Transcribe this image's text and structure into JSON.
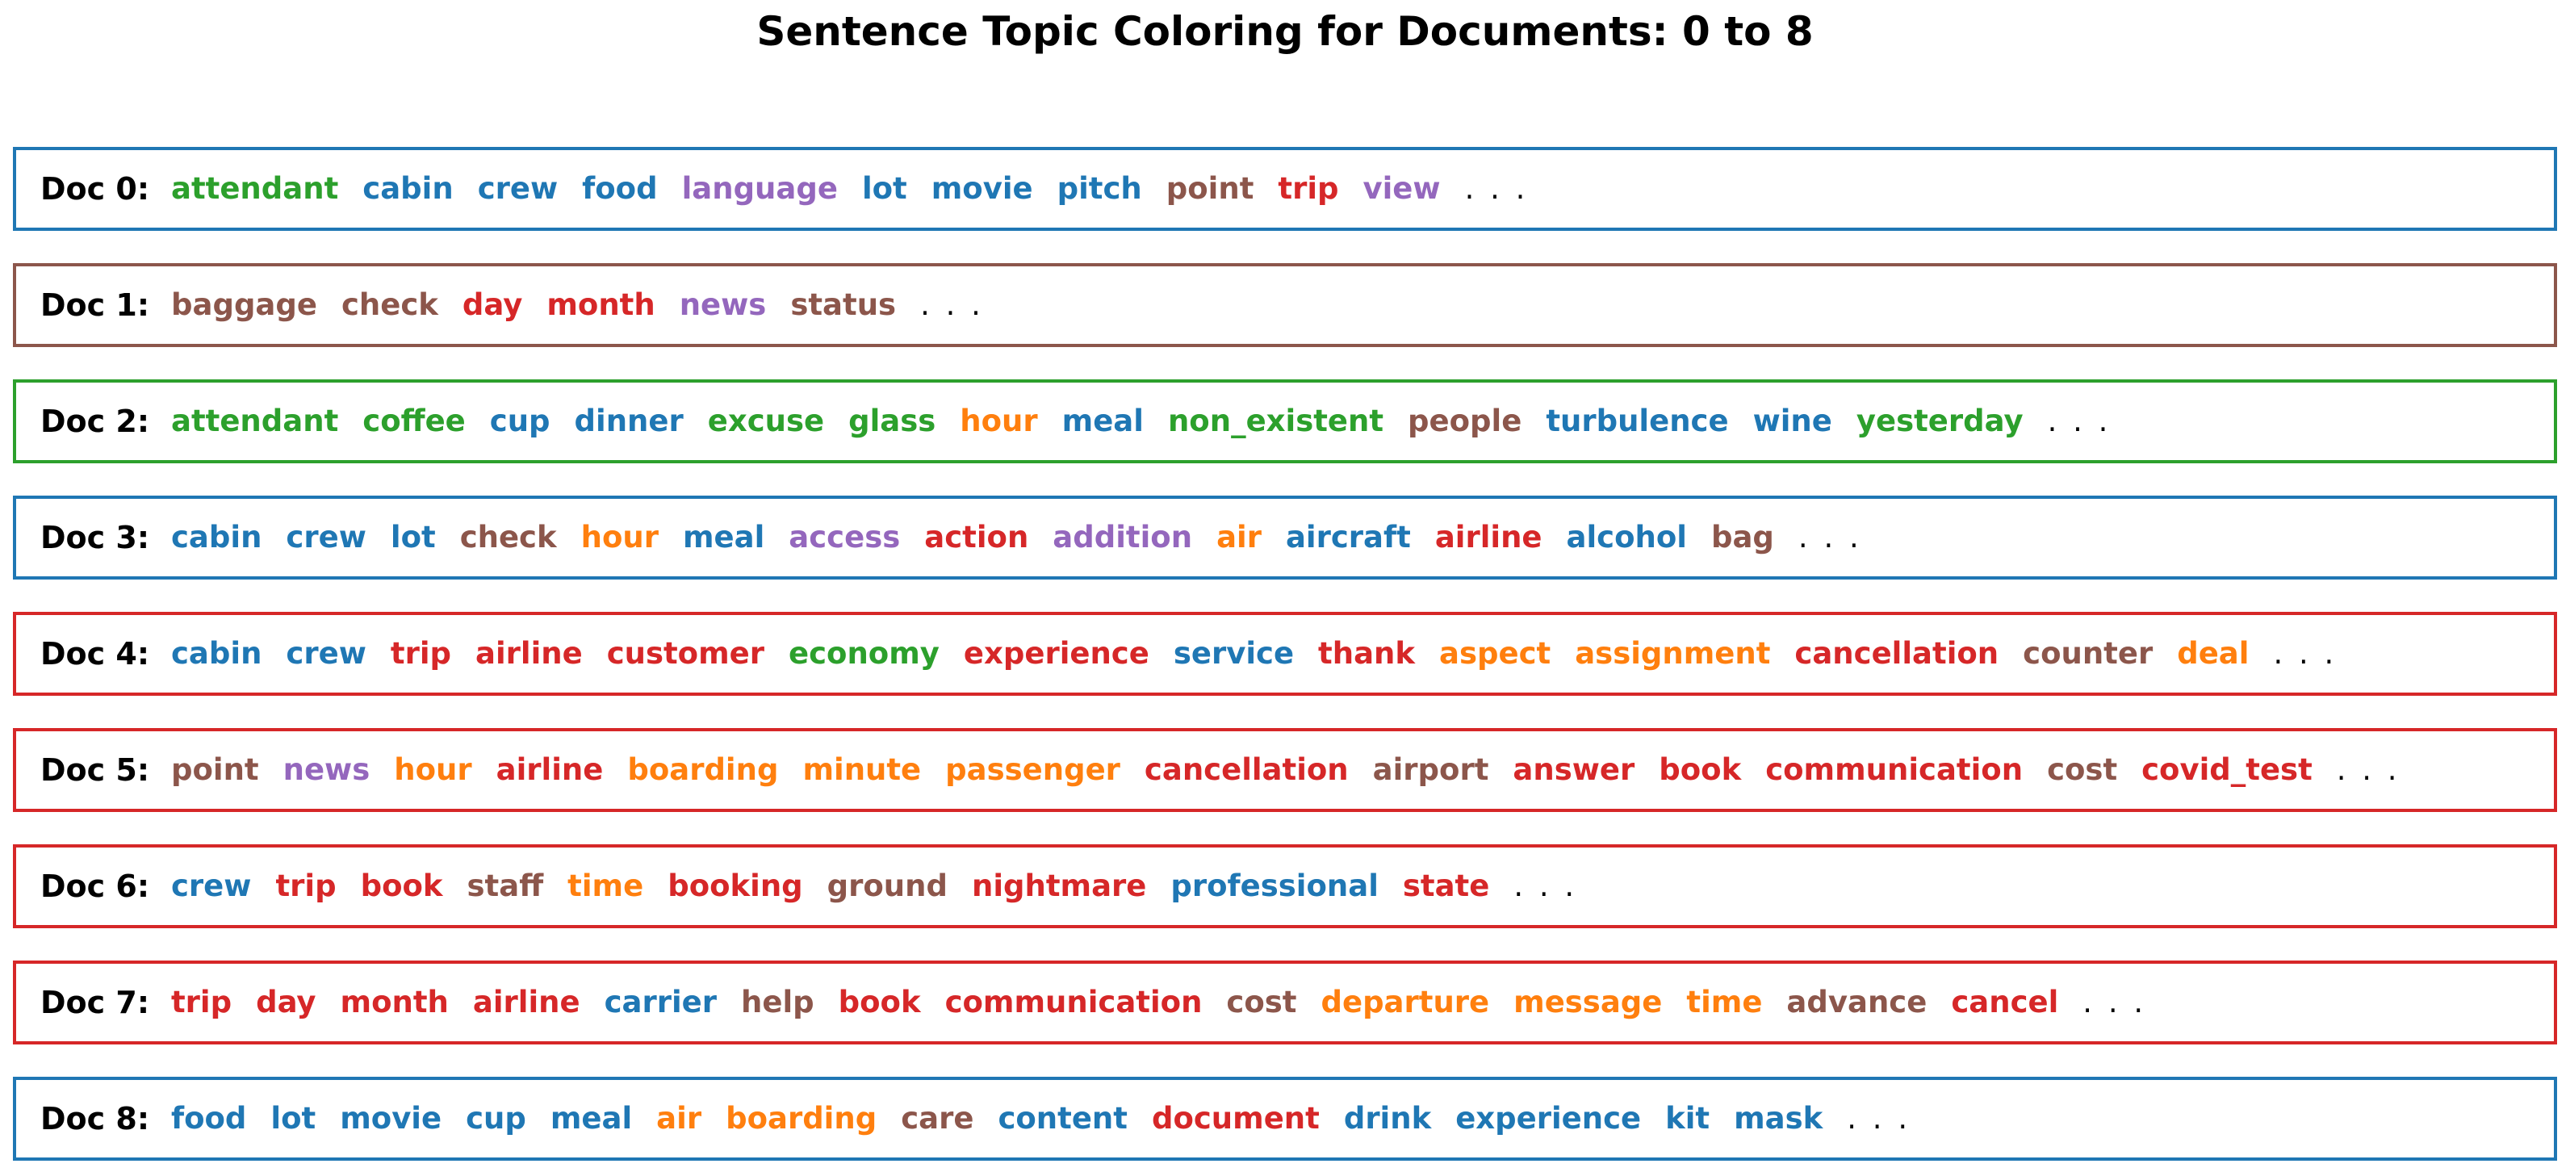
{
  "chart_data": {
    "type": "table",
    "title": "Sentence Topic Coloring for Documents: 0 to 8",
    "topic_colors": {
      "0": "#1f77b4",
      "1": "#ff7f0e",
      "2": "#2ca02c",
      "3": "#d62728",
      "4": "#9467bd",
      "5": "#8c564b"
    },
    "ellipsis": ". . .",
    "docs": [
      {
        "label": "Doc 0:",
        "dominant_topic": 0,
        "words": [
          {
            "text": "attendant",
            "topic": 2
          },
          {
            "text": "cabin",
            "topic": 0
          },
          {
            "text": "crew",
            "topic": 0
          },
          {
            "text": "food",
            "topic": 0
          },
          {
            "text": "language",
            "topic": 4
          },
          {
            "text": "lot",
            "topic": 0
          },
          {
            "text": "movie",
            "topic": 0
          },
          {
            "text": "pitch",
            "topic": 0
          },
          {
            "text": "point",
            "topic": 5
          },
          {
            "text": "trip",
            "topic": 3
          },
          {
            "text": "view",
            "topic": 4
          }
        ]
      },
      {
        "label": "Doc 1:",
        "dominant_topic": 5,
        "words": [
          {
            "text": "baggage",
            "topic": 5
          },
          {
            "text": "check",
            "topic": 5
          },
          {
            "text": "day",
            "topic": 3
          },
          {
            "text": "month",
            "topic": 3
          },
          {
            "text": "news",
            "topic": 4
          },
          {
            "text": "status",
            "topic": 5
          }
        ]
      },
      {
        "label": "Doc 2:",
        "dominant_topic": 2,
        "words": [
          {
            "text": "attendant",
            "topic": 2
          },
          {
            "text": "coffee",
            "topic": 2
          },
          {
            "text": "cup",
            "topic": 0
          },
          {
            "text": "dinner",
            "topic": 0
          },
          {
            "text": "excuse",
            "topic": 2
          },
          {
            "text": "glass",
            "topic": 2
          },
          {
            "text": "hour",
            "topic": 1
          },
          {
            "text": "meal",
            "topic": 0
          },
          {
            "text": "non_existent",
            "topic": 2
          },
          {
            "text": "people",
            "topic": 5
          },
          {
            "text": "turbulence",
            "topic": 0
          },
          {
            "text": "wine",
            "topic": 0
          },
          {
            "text": "yesterday",
            "topic": 2
          }
        ]
      },
      {
        "label": "Doc 3:",
        "dominant_topic": 0,
        "words": [
          {
            "text": "cabin",
            "topic": 0
          },
          {
            "text": "crew",
            "topic": 0
          },
          {
            "text": "lot",
            "topic": 0
          },
          {
            "text": "check",
            "topic": 5
          },
          {
            "text": "hour",
            "topic": 1
          },
          {
            "text": "meal",
            "topic": 0
          },
          {
            "text": "access",
            "topic": 4
          },
          {
            "text": "action",
            "topic": 3
          },
          {
            "text": "addition",
            "topic": 4
          },
          {
            "text": "air",
            "topic": 1
          },
          {
            "text": "aircraft",
            "topic": 0
          },
          {
            "text": "airline",
            "topic": 3
          },
          {
            "text": "alcohol",
            "topic": 0
          },
          {
            "text": "bag",
            "topic": 5
          }
        ]
      },
      {
        "label": "Doc 4:",
        "dominant_topic": 3,
        "words": [
          {
            "text": "cabin",
            "topic": 0
          },
          {
            "text": "crew",
            "topic": 0
          },
          {
            "text": "trip",
            "topic": 3
          },
          {
            "text": "airline",
            "topic": 3
          },
          {
            "text": "customer",
            "topic": 3
          },
          {
            "text": "economy",
            "topic": 2
          },
          {
            "text": "experience",
            "topic": 3
          },
          {
            "text": "service",
            "topic": 0
          },
          {
            "text": "thank",
            "topic": 3
          },
          {
            "text": "aspect",
            "topic": 1
          },
          {
            "text": "assignment",
            "topic": 1
          },
          {
            "text": "cancellation",
            "topic": 3
          },
          {
            "text": "counter",
            "topic": 5
          },
          {
            "text": "deal",
            "topic": 1
          }
        ]
      },
      {
        "label": "Doc 5:",
        "dominant_topic": 3,
        "words": [
          {
            "text": "point",
            "topic": 5
          },
          {
            "text": "news",
            "topic": 4
          },
          {
            "text": "hour",
            "topic": 1
          },
          {
            "text": "airline",
            "topic": 3
          },
          {
            "text": "boarding",
            "topic": 1
          },
          {
            "text": "minute",
            "topic": 1
          },
          {
            "text": "passenger",
            "topic": 1
          },
          {
            "text": "cancellation",
            "topic": 3
          },
          {
            "text": "airport",
            "topic": 5
          },
          {
            "text": "answer",
            "topic": 3
          },
          {
            "text": "book",
            "topic": 3
          },
          {
            "text": "communication",
            "topic": 3
          },
          {
            "text": "cost",
            "topic": 5
          },
          {
            "text": "covid_test",
            "topic": 3
          }
        ]
      },
      {
        "label": "Doc 6:",
        "dominant_topic": 3,
        "words": [
          {
            "text": "crew",
            "topic": 0
          },
          {
            "text": "trip",
            "topic": 3
          },
          {
            "text": "book",
            "topic": 3
          },
          {
            "text": "staff",
            "topic": 5
          },
          {
            "text": "time",
            "topic": 1
          },
          {
            "text": "booking",
            "topic": 3
          },
          {
            "text": "ground",
            "topic": 5
          },
          {
            "text": "nightmare",
            "topic": 3
          },
          {
            "text": "professional",
            "topic": 0
          },
          {
            "text": "state",
            "topic": 3
          }
        ]
      },
      {
        "label": "Doc 7:",
        "dominant_topic": 3,
        "words": [
          {
            "text": "trip",
            "topic": 3
          },
          {
            "text": "day",
            "topic": 3
          },
          {
            "text": "month",
            "topic": 3
          },
          {
            "text": "airline",
            "topic": 3
          },
          {
            "text": "carrier",
            "topic": 0
          },
          {
            "text": "help",
            "topic": 5
          },
          {
            "text": "book",
            "topic": 3
          },
          {
            "text": "communication",
            "topic": 3
          },
          {
            "text": "cost",
            "topic": 5
          },
          {
            "text": "departure",
            "topic": 1
          },
          {
            "text": "message",
            "topic": 1
          },
          {
            "text": "time",
            "topic": 1
          },
          {
            "text": "advance",
            "topic": 5
          },
          {
            "text": "cancel",
            "topic": 3
          }
        ]
      },
      {
        "label": "Doc 8:",
        "dominant_topic": 0,
        "words": [
          {
            "text": "food",
            "topic": 0
          },
          {
            "text": "lot",
            "topic": 0
          },
          {
            "text": "movie",
            "topic": 0
          },
          {
            "text": "cup",
            "topic": 0
          },
          {
            "text": "meal",
            "topic": 0
          },
          {
            "text": "air",
            "topic": 1
          },
          {
            "text": "boarding",
            "topic": 1
          },
          {
            "text": "care",
            "topic": 5
          },
          {
            "text": "content",
            "topic": 0
          },
          {
            "text": "document",
            "topic": 3
          },
          {
            "text": "drink",
            "topic": 0
          },
          {
            "text": "experience",
            "topic": 0
          },
          {
            "text": "kit",
            "topic": 0
          },
          {
            "text": "mask",
            "topic": 0
          }
        ]
      }
    ]
  }
}
